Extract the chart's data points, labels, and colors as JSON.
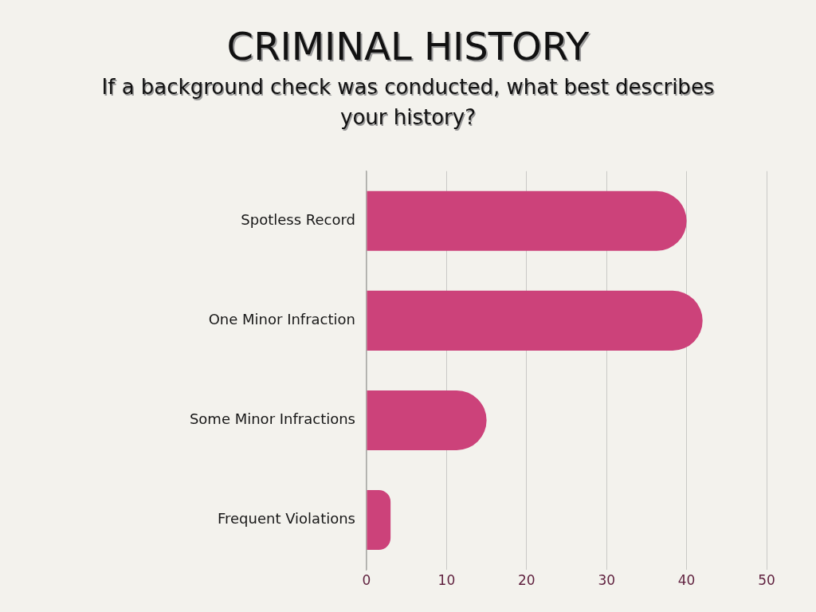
{
  "chart_data": {
    "type": "bar",
    "title": "CRIMINAL HISTORY",
    "subtitle": "If a background check was conducted, what best describes your history?",
    "categories": [
      "Spotless Record",
      "One Minor Infraction",
      "Some Minor Infractions",
      "Frequent Violations"
    ],
    "values": [
      40,
      42,
      15,
      3
    ],
    "color": "#cc427a",
    "orientation": "horizontal",
    "xlim": [
      0,
      50
    ],
    "xticks": [
      0,
      10,
      20,
      30,
      40,
      50
    ],
    "grid": "x"
  }
}
